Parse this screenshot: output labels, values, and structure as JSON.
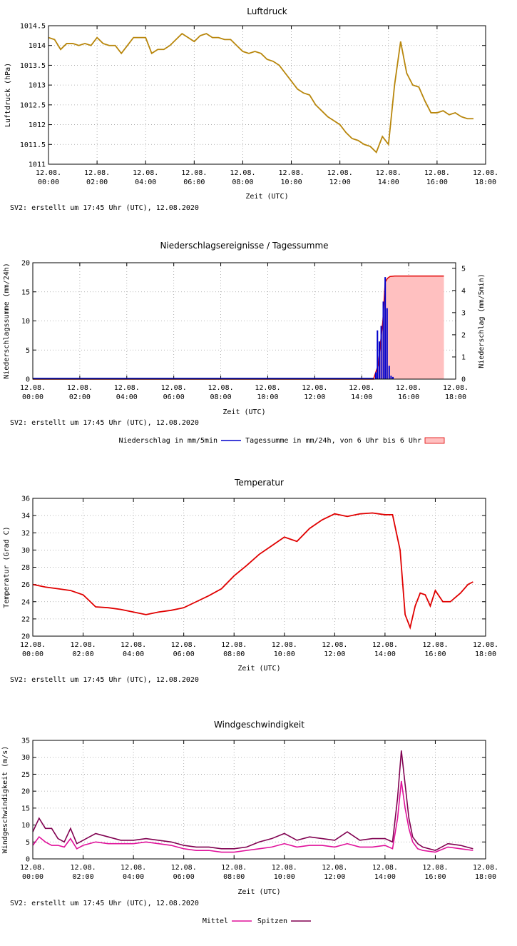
{
  "footer": "SV2: erstellt um 17:45 Uhr (UTC), 12.08.2020",
  "x_tick_labels": [
    [
      "12.08.",
      "00:00"
    ],
    [
      "12.08.",
      "02:00"
    ],
    [
      "12.08.",
      "04:00"
    ],
    [
      "12.08.",
      "06:00"
    ],
    [
      "12.08.",
      "08:00"
    ],
    [
      "12.08.",
      "10:00"
    ],
    [
      "12.08.",
      "12:00"
    ],
    [
      "12.08.",
      "14:00"
    ],
    [
      "12.08.",
      "16:00"
    ],
    [
      "12.08.",
      "18:00"
    ]
  ],
  "xlabel": "Zeit (UTC)",
  "colors": {
    "luftdruck": "#b8860b",
    "niederschlag": "#0000cc",
    "tagessumme_line": "#e00000",
    "tagessumme_fill": "#ffc0c0",
    "temperatur": "#e00000",
    "mittel": "#e0109a",
    "spitzen": "#800050"
  },
  "chart_data": [
    {
      "type": "line",
      "title": "Luftdruck",
      "xlabel": "Zeit (UTC)",
      "ylabel": "Luftdruck (hPa)",
      "xlim": [
        0,
        18
      ],
      "ylim": [
        1011,
        1014.5
      ],
      "yticks": [
        "1011",
        "1011.5",
        "1012",
        "1012.5",
        "1013",
        "1013.5",
        "1014",
        "1014.5"
      ],
      "series": [
        {
          "x": [
            0,
            0.25,
            0.5,
            0.75,
            1.0,
            1.25,
            1.5,
            1.75,
            2.0,
            2.25,
            2.5,
            2.75,
            3.0,
            3.25,
            3.5,
            3.75,
            4.0,
            4.25,
            4.5,
            4.75,
            5.0,
            5.25,
            5.5,
            5.75,
            6.0,
            6.25,
            6.5,
            6.75,
            7.0,
            7.25,
            7.5,
            7.75,
            8.0,
            8.25,
            8.5,
            8.75,
            9.0,
            9.25,
            9.5,
            9.75,
            10.0,
            10.25,
            10.5,
            10.75,
            11.0,
            11.25,
            11.5,
            11.75,
            12.0,
            12.25,
            12.5,
            12.75,
            13.0,
            13.25,
            13.5,
            13.75,
            14.0,
            14.25,
            14.5,
            14.75,
            15.0,
            15.25,
            15.5,
            15.75,
            16.0,
            16.25,
            16.5,
            16.75,
            17.0,
            17.25,
            17.5
          ],
          "values": [
            1014.2,
            1014.15,
            1013.9,
            1014.05,
            1014.05,
            1014.0,
            1014.05,
            1014.0,
            1014.2,
            1014.05,
            1014.0,
            1014.0,
            1013.8,
            1014.0,
            1014.2,
            1014.2,
            1014.2,
            1013.8,
            1013.9,
            1013.9,
            1014.0,
            1014.15,
            1014.3,
            1014.2,
            1014.1,
            1014.25,
            1014.3,
            1014.2,
            1014.2,
            1014.15,
            1014.15,
            1014.0,
            1013.85,
            1013.8,
            1013.85,
            1013.8,
            1013.65,
            1013.6,
            1013.5,
            1013.3,
            1013.1,
            1012.9,
            1012.8,
            1012.75,
            1012.5,
            1012.35,
            1012.2,
            1012.1,
            1012.0,
            1011.8,
            1011.65,
            1011.6,
            1011.5,
            1011.45,
            1011.3,
            1011.7,
            1011.5,
            1013.0,
            1014.1,
            1013.3,
            1013.0,
            1012.95,
            1012.6,
            1012.3,
            1012.3,
            1012.35,
            1012.25,
            1012.3,
            1012.2,
            1012.15,
            1012.15
          ]
        }
      ]
    },
    {
      "type": "bar",
      "title": "Niederschlagsereignisse / Tagessumme",
      "xlabel": "Zeit (UTC)",
      "ylabel": "Niederschlagssumme (mm/24h)",
      "ylabel_right": "Niederschlag (mm/5min)",
      "xlim": [
        0,
        18
      ],
      "ylim": [
        0,
        21
      ],
      "ylim_right": [
        0,
        5.25
      ],
      "yticks": [
        "0",
        "5",
        "10",
        "15",
        "20"
      ],
      "yticks_right": [
        "0",
        "1",
        "2",
        "3",
        "4",
        "5"
      ],
      "legend_position": "bottom",
      "series": [
        {
          "name": "Niederschlag in mm/5min",
          "type": "bar",
          "axis": "right",
          "x": [
            14.6,
            14.67,
            14.75,
            14.83,
            14.92,
            15.0,
            15.08,
            15.17,
            15.25,
            15.33
          ],
          "values": [
            0.3,
            2.2,
            1.7,
            2.4,
            3.5,
            4.6,
            3.2,
            0.6,
            0.15,
            0.1
          ]
        },
        {
          "name": "Tagessumme in mm/24h, von 6 Uhr bis 6 Uhr",
          "type": "area",
          "axis": "left",
          "x": [
            0,
            14.5,
            14.7,
            14.9,
            15.0,
            15.1,
            15.2,
            15.4,
            17.5
          ],
          "values": [
            0,
            0,
            2.5,
            10.5,
            17.5,
            18.2,
            18.5,
            18.6,
            18.6
          ]
        }
      ]
    },
    {
      "type": "line",
      "title": "Temperatur",
      "xlabel": "Zeit (UTC)",
      "ylabel": "Temperatur (Grad C)",
      "xlim": [
        0,
        18
      ],
      "ylim": [
        20,
        36
      ],
      "yticks": [
        "20",
        "22",
        "24",
        "26",
        "28",
        "30",
        "32",
        "34",
        "36"
      ],
      "series": [
        {
          "x": [
            0,
            0.5,
            1.0,
            1.5,
            2.0,
            2.5,
            3.0,
            3.5,
            4.0,
            4.5,
            5.0,
            5.5,
            6.0,
            6.5,
            7.0,
            7.5,
            8.0,
            8.5,
            9.0,
            9.5,
            10.0,
            10.5,
            11.0,
            11.5,
            12.0,
            12.5,
            13.0,
            13.5,
            14.0,
            14.3,
            14.6,
            14.8,
            15.0,
            15.2,
            15.4,
            15.6,
            15.8,
            16.0,
            16.3,
            16.6,
            17.0,
            17.3,
            17.5
          ],
          "values": [
            26.0,
            25.7,
            25.5,
            25.3,
            24.8,
            23.4,
            23.3,
            23.1,
            22.8,
            22.5,
            22.8,
            23.0,
            23.3,
            24.0,
            24.7,
            25.5,
            27.0,
            28.2,
            29.5,
            30.5,
            31.5,
            31.0,
            32.5,
            33.5,
            34.2,
            33.9,
            34.2,
            34.3,
            34.1,
            34.1,
            30.0,
            22.5,
            21.0,
            23.5,
            25.0,
            24.8,
            23.5,
            25.3,
            24.0,
            24.0,
            25.0,
            26.0,
            26.3
          ]
        }
      ]
    },
    {
      "type": "line",
      "title": "Windgeschwindigkeit",
      "xlabel": "Zeit (UTC)",
      "ylabel": "Windgeschwindigkeit (m/s)",
      "xlim": [
        0,
        18
      ],
      "ylim": [
        0,
        35
      ],
      "yticks": [
        "0",
        "5",
        "10",
        "15",
        "20",
        "25",
        "30",
        "35"
      ],
      "legend_position": "bottom",
      "series": [
        {
          "name": "Mittel",
          "x": [
            0,
            0.25,
            0.5,
            0.75,
            1.0,
            1.25,
            1.5,
            1.75,
            2.0,
            2.5,
            3.0,
            3.5,
            4.0,
            4.5,
            5.0,
            5.5,
            6.0,
            6.5,
            7.0,
            7.5,
            8.0,
            8.5,
            9.0,
            9.5,
            10.0,
            10.5,
            11.0,
            11.5,
            12.0,
            12.5,
            13.0,
            13.5,
            14.0,
            14.3,
            14.5,
            14.65,
            14.8,
            14.95,
            15.1,
            15.3,
            15.5,
            16.0,
            16.5,
            17.0,
            17.5
          ],
          "values": [
            4,
            6.5,
            5,
            4,
            4,
            3.5,
            6,
            3,
            4,
            5,
            4.5,
            4.5,
            4.5,
            5,
            4.5,
            4,
            3,
            2.5,
            2.5,
            2,
            2,
            2.5,
            3,
            3.5,
            4.5,
            3.5,
            4,
            4,
            3.5,
            4.5,
            3.5,
            3.5,
            4,
            3,
            12,
            23,
            15,
            9,
            5,
            3,
            2.5,
            2,
            3.5,
            3,
            2.5
          ]
        },
        {
          "name": "Spitzen",
          "x": [
            0,
            0.25,
            0.5,
            0.75,
            1.0,
            1.25,
            1.5,
            1.75,
            2.0,
            2.5,
            3.0,
            3.5,
            4.0,
            4.5,
            5.0,
            5.5,
            6.0,
            6.5,
            7.0,
            7.5,
            8.0,
            8.5,
            9.0,
            9.5,
            10.0,
            10.5,
            11.0,
            11.5,
            12.0,
            12.5,
            13.0,
            13.5,
            14.0,
            14.3,
            14.5,
            14.65,
            14.8,
            14.95,
            15.1,
            15.3,
            15.5,
            16.0,
            16.5,
            17.0,
            17.5
          ],
          "values": [
            8,
            12,
            9,
            9,
            6,
            5,
            9,
            4.5,
            5.5,
            7.5,
            6.5,
            5.5,
            5.5,
            6,
            5.5,
            5,
            4,
            3.5,
            3.5,
            3,
            3,
            3.5,
            5,
            6,
            7.5,
            5.5,
            6.5,
            6,
            5.5,
            8,
            5.5,
            6,
            6,
            5,
            18,
            32,
            22,
            12,
            6.5,
            4.5,
            3.5,
            2.5,
            4.5,
            4,
            3
          ]
        }
      ]
    }
  ]
}
